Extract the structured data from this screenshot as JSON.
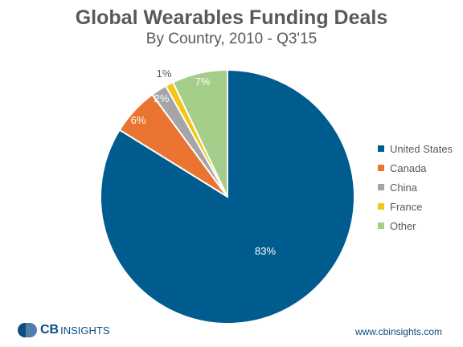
{
  "title": "Global Wearables Funding Deals",
  "subtitle": "By Country, 2010 - Q3'15",
  "chart_data": {
    "type": "pie",
    "slices": [
      {
        "name": "United States",
        "value": 83,
        "label": "83%",
        "color": "#005b8f"
      },
      {
        "name": "Canada",
        "value": 6,
        "label": "6%",
        "color": "#ea7532"
      },
      {
        "name": "China",
        "value": 2,
        "label": "2%",
        "color": "#a5a5a5"
      },
      {
        "name": "France",
        "value": 1,
        "label": "1%",
        "color": "#f3c517"
      },
      {
        "name": "Other",
        "value": 7,
        "label": "7%",
        "color": "#a6ce8b"
      }
    ],
    "legend_position": "right"
  },
  "footer": {
    "logo_cb": "CB",
    "logo_insights": "INSIGHTS",
    "url": "www.cbinsights.com"
  }
}
